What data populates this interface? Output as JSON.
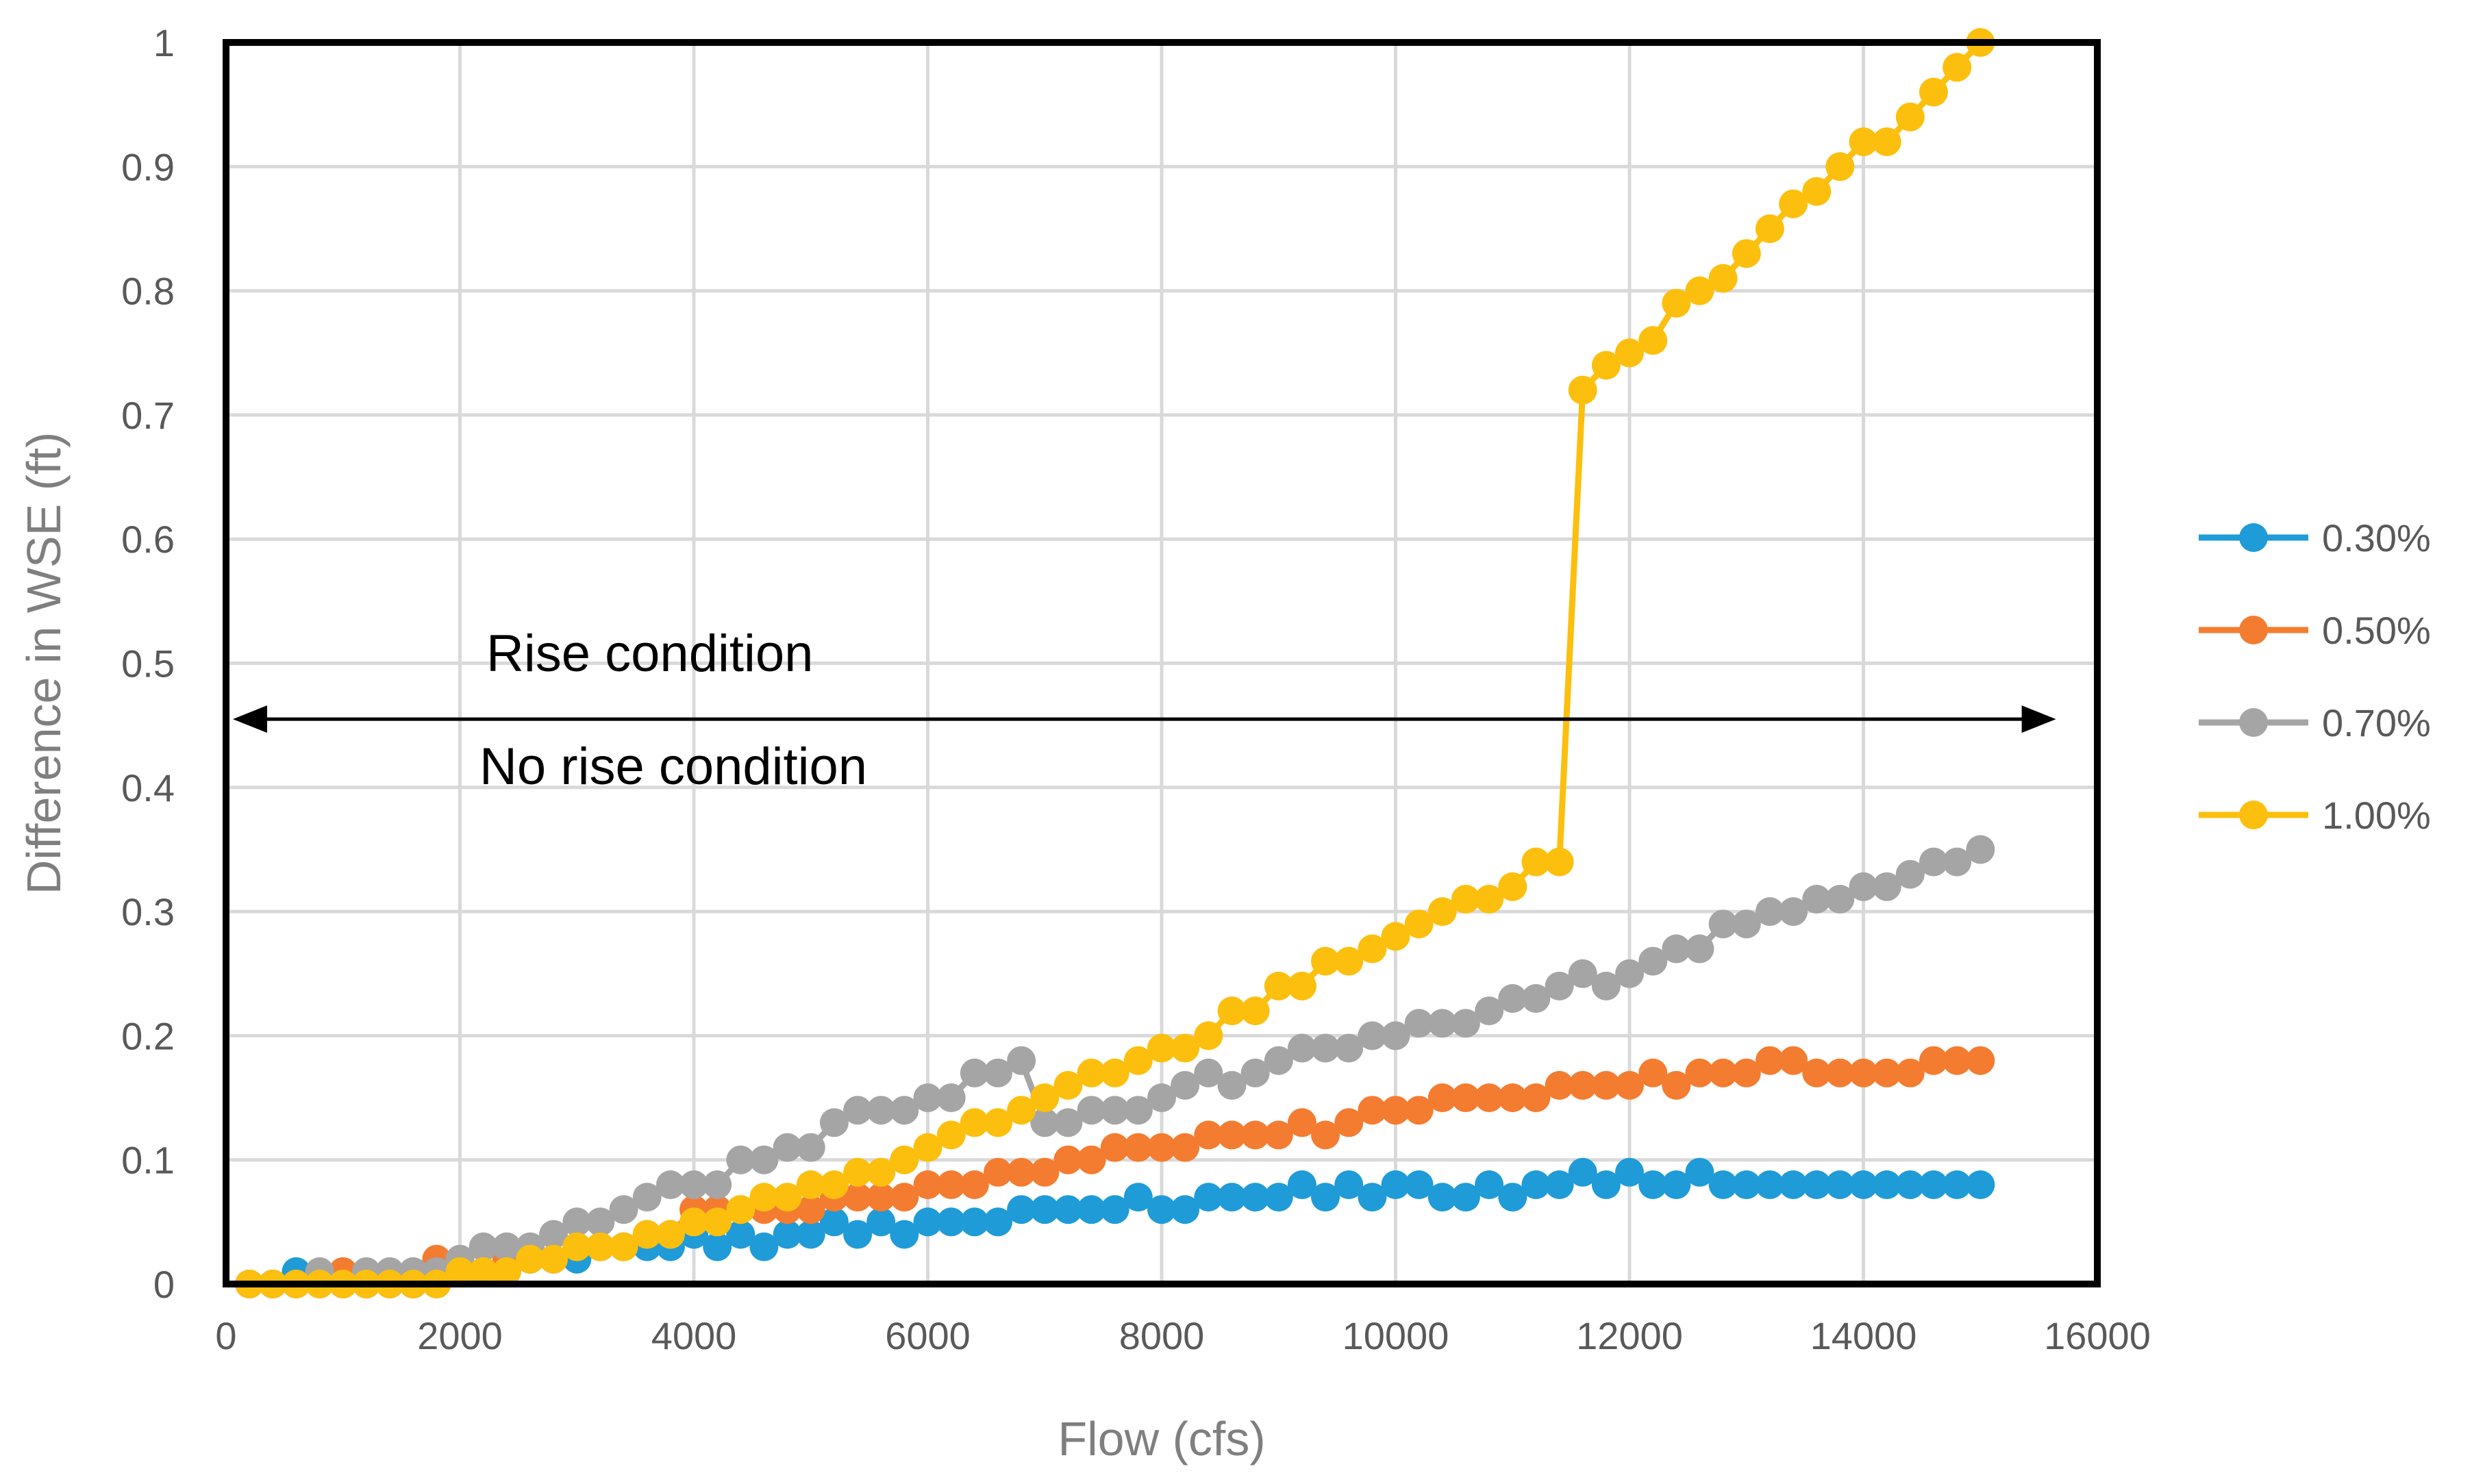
{
  "chart_data": {
    "type": "line",
    "title": "",
    "xlabel": "Flow (cfs)",
    "ylabel": "Difference in WSE (ft)",
    "xlim": [
      0,
      16000
    ],
    "ylim": [
      0,
      1
    ],
    "xticks": [
      0,
      2000,
      4000,
      6000,
      8000,
      10000,
      12000,
      14000,
      16000
    ],
    "yticks": [
      0,
      0.1,
      0.2,
      0.3,
      0.4,
      0.5,
      0.6,
      0.7,
      0.8,
      0.9,
      1
    ],
    "xtick_labels": [
      "0",
      "2000",
      "4000",
      "6000",
      "8000",
      "10000",
      "12000",
      "14000",
      "16000"
    ],
    "ytick_labels": [
      "0",
      "0.1",
      "0.2",
      "0.3",
      "0.4",
      "0.5",
      "0.6",
      "0.7",
      "0.8",
      "0.9",
      "1"
    ],
    "grid": true,
    "legend_position": "right",
    "x": [
      200,
      400,
      600,
      800,
      1000,
      1200,
      1400,
      1600,
      1800,
      2000,
      2200,
      2400,
      2600,
      2800,
      3000,
      3200,
      3400,
      3600,
      3800,
      4000,
      4200,
      4400,
      4600,
      4800,
      5000,
      5200,
      5400,
      5600,
      5800,
      6000,
      6200,
      6400,
      6600,
      6800,
      7000,
      7200,
      7400,
      7600,
      7800,
      8000,
      8200,
      8400,
      8600,
      8800,
      9000,
      9200,
      9400,
      9600,
      9800,
      10000,
      10200,
      10400,
      10600,
      10800,
      11000,
      11200,
      11400,
      11600,
      11800,
      12000,
      12200,
      12400,
      12600,
      12800,
      13000,
      13200,
      13400,
      13600,
      13800,
      14000,
      14200,
      14400,
      14600,
      14800,
      15000
    ],
    "series": [
      {
        "name": "0.30%",
        "color": "#1f9bd7",
        "values": [
          0,
          0,
          0.01,
          0,
          0,
          0,
          0,
          0,
          0,
          0.01,
          0.01,
          0.01,
          0.02,
          0.02,
          0.02,
          0.03,
          0.03,
          0.03,
          0.03,
          0.04,
          0.03,
          0.04,
          0.03,
          0.04,
          0.04,
          0.05,
          0.04,
          0.05,
          0.04,
          0.05,
          0.05,
          0.05,
          0.05,
          0.06,
          0.06,
          0.06,
          0.06,
          0.06,
          0.07,
          0.06,
          0.06,
          0.07,
          0.07,
          0.07,
          0.07,
          0.08,
          0.07,
          0.08,
          0.07,
          0.08,
          0.08,
          0.07,
          0.07,
          0.08,
          0.07,
          0.08,
          0.08,
          0.09,
          0.08,
          0.09,
          0.08,
          0.08,
          0.09,
          0.08,
          0.08,
          0.08,
          0.08,
          0.08,
          0.08,
          0.08,
          0.08,
          0.08,
          0.08,
          0.08,
          0.08
        ]
      },
      {
        "name": "0.50%",
        "color": "#f47c30",
        "values": [
          0,
          0,
          0,
          0,
          0.01,
          0,
          0,
          0,
          0.02,
          0.01,
          0.01,
          0.02,
          0.02,
          0.02,
          0.03,
          0.03,
          0.03,
          0.04,
          0.04,
          0.06,
          0.06,
          0.06,
          0.06,
          0.06,
          0.06,
          0.07,
          0.07,
          0.07,
          0.07,
          0.08,
          0.08,
          0.08,
          0.09,
          0.09,
          0.09,
          0.1,
          0.1,
          0.11,
          0.11,
          0.11,
          0.11,
          0.12,
          0.12,
          0.12,
          0.12,
          0.13,
          0.12,
          0.13,
          0.14,
          0.14,
          0.14,
          0.15,
          0.15,
          0.15,
          0.15,
          0.15,
          0.16,
          0.16,
          0.16,
          0.16,
          0.17,
          0.16,
          0.17,
          0.17,
          0.17,
          0.18,
          0.18,
          0.17,
          0.17,
          0.17,
          0.17,
          0.17,
          0.18,
          0.18,
          0.18
        ]
      },
      {
        "name": "0.70%",
        "color": "#a5a5a5",
        "values": [
          0,
          0,
          0,
          0.01,
          0,
          0.01,
          0.01,
          0.01,
          0.01,
          0.02,
          0.03,
          0.03,
          0.03,
          0.04,
          0.05,
          0.05,
          0.06,
          0.07,
          0.08,
          0.08,
          0.08,
          0.1,
          0.1,
          0.11,
          0.11,
          0.13,
          0.14,
          0.14,
          0.14,
          0.15,
          0.15,
          0.17,
          0.17,
          0.18,
          0.13,
          0.13,
          0.14,
          0.14,
          0.14,
          0.15,
          0.16,
          0.17,
          0.16,
          0.17,
          0.18,
          0.19,
          0.19,
          0.19,
          0.2,
          0.2,
          0.21,
          0.21,
          0.21,
          0.22,
          0.23,
          0.23,
          0.24,
          0.25,
          0.24,
          0.25,
          0.26,
          0.27,
          0.27,
          0.29,
          0.29,
          0.3,
          0.3,
          0.31,
          0.31,
          0.32,
          0.32,
          0.33,
          0.34,
          0.34,
          0.35
        ]
      },
      {
        "name": "1.00%",
        "color": "#fcbf0d",
        "values": [
          0,
          0,
          0,
          0,
          0,
          0,
          0,
          0,
          0,
          0.01,
          0.01,
          0.01,
          0.02,
          0.02,
          0.03,
          0.03,
          0.03,
          0.04,
          0.04,
          0.05,
          0.05,
          0.06,
          0.07,
          0.07,
          0.08,
          0.08,
          0.09,
          0.09,
          0.1,
          0.11,
          0.12,
          0.13,
          0.13,
          0.14,
          0.15,
          0.16,
          0.17,
          0.17,
          0.18,
          0.19,
          0.19,
          0.2,
          0.22,
          0.22,
          0.24,
          0.24,
          0.26,
          0.26,
          0.27,
          0.28,
          0.29,
          0.3,
          0.31,
          0.31,
          0.32,
          0.34,
          0.34,
          0.72,
          0.74,
          0.75,
          0.76,
          0.79,
          0.8,
          0.81,
          0.83,
          0.85,
          0.87,
          0.88,
          0.9,
          0.92,
          0.92,
          0.94,
          0.96,
          0.98,
          1.0
        ]
      }
    ],
    "annotations": {
      "arrow": {
        "x_start": 0,
        "x_end": 15500,
        "y": 0.455,
        "style": "double-headed"
      },
      "above_text": "Rise condition",
      "below_text": "No rise condition"
    }
  }
}
